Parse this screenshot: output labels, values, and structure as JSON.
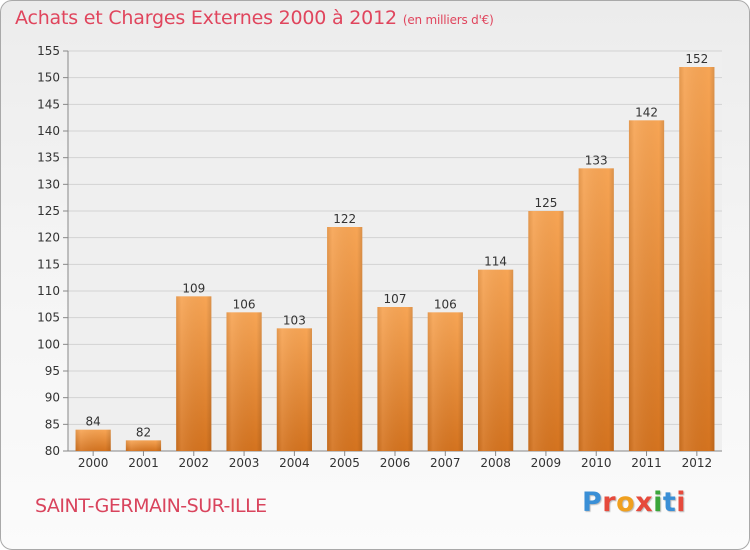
{
  "header": {
    "title": "Achats et Charges Externes 2000 à 2012",
    "subtitle": "(en milliers d'€)"
  },
  "commune": "SAINT-GERMAIN-SUR-ILLE",
  "logo": {
    "text": "Proxiti",
    "letters": [
      {
        "ch": "P",
        "color": "#3a8fd6"
      },
      {
        "ch": "r",
        "color": "#e64a3c"
      },
      {
        "ch": "o",
        "color": "#f0a01e"
      },
      {
        "ch": "x",
        "color": "#e64a3c"
      },
      {
        "ch": "i",
        "color": "#3aa63a"
      },
      {
        "ch": "t",
        "color": "#3a8fd6"
      },
      {
        "ch": "i",
        "color": "#e64a3c"
      }
    ]
  },
  "chart_data": {
    "type": "bar",
    "title": "Achats et Charges Externes 2000 à 2012",
    "subtitle": "(en milliers d'€)",
    "categories": [
      "2000",
      "2001",
      "2002",
      "2003",
      "2004",
      "2005",
      "2006",
      "2007",
      "2008",
      "2009",
      "2010",
      "2011",
      "2012"
    ],
    "values": [
      84,
      82,
      109,
      106,
      103,
      122,
      107,
      106,
      114,
      125,
      133,
      142,
      152
    ],
    "ylim": [
      80,
      155
    ],
    "yticks": [
      80,
      85,
      90,
      95,
      100,
      105,
      110,
      115,
      120,
      125,
      130,
      135,
      140,
      145,
      150,
      155
    ],
    "grid": true,
    "bar_color_top": "#f7a555",
    "bar_color_bottom": "#d4731f"
  }
}
